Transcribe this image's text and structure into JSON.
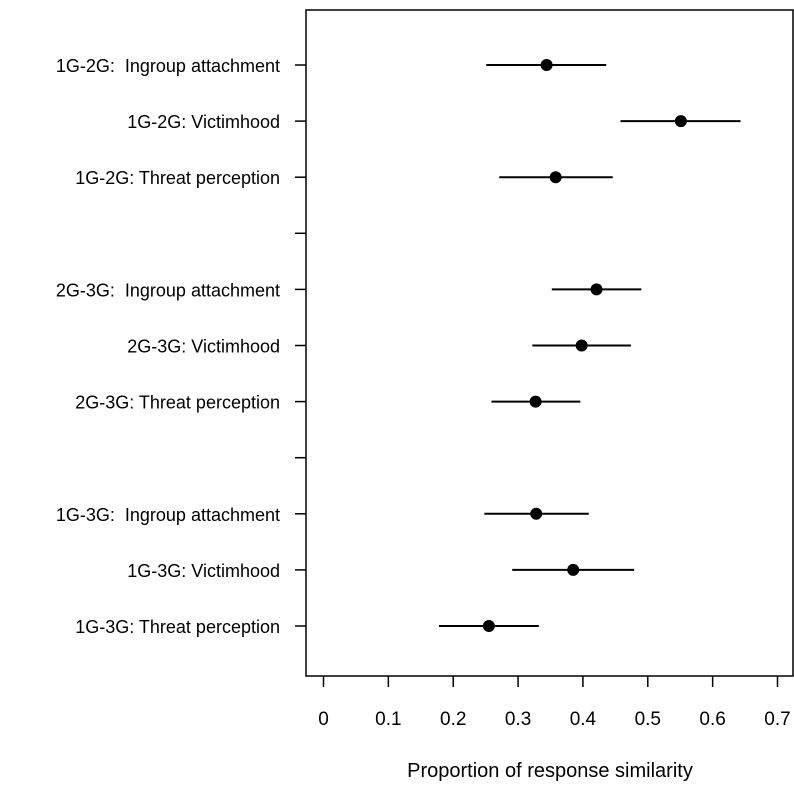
{
  "chart_data": {
    "type": "scatter",
    "subtype": "dot-with-error-bars",
    "orientation": "horizontal",
    "xlabel": "Proportion of response similarity",
    "xlim": [
      -0.03,
      0.73
    ],
    "xticks": [
      0,
      0.1,
      0.2,
      0.3,
      0.4,
      0.5,
      0.6,
      0.7
    ],
    "xtick_labels": [
      "0",
      "0.1",
      "0.2",
      "0.3",
      "0.4",
      "0.5",
      "0.6",
      "0.7"
    ],
    "grid": false,
    "legend": "none",
    "colors": {
      "point": "#000000",
      "line": "#000000",
      "axis": "#000000"
    },
    "items": [
      {
        "label": "1G-2G:  Ingroup attachment",
        "estimate": 0.344,
        "lower": 0.251,
        "upper": 0.436
      },
      {
        "label": "1G-2G: Victimhood",
        "estimate": 0.551,
        "lower": 0.458,
        "upper": 0.643
      },
      {
        "label": "1G-2G: Threat perception",
        "estimate": 0.358,
        "lower": 0.271,
        "upper": 0.446
      },
      {
        "label": "",
        "separator": true
      },
      {
        "label": "2G-3G:  Ingroup attachment",
        "estimate": 0.421,
        "lower": 0.352,
        "upper": 0.49
      },
      {
        "label": "2G-3G: Victimhood",
        "estimate": 0.398,
        "lower": 0.322,
        "upper": 0.474
      },
      {
        "label": "2G-3G: Threat perception",
        "estimate": 0.327,
        "lower": 0.259,
        "upper": 0.396
      },
      {
        "label": "",
        "separator": true
      },
      {
        "label": "1G-3G:  Ingroup attachment",
        "estimate": 0.328,
        "lower": 0.248,
        "upper": 0.409
      },
      {
        "label": "1G-3G: Victimhood",
        "estimate": 0.385,
        "lower": 0.291,
        "upper": 0.479
      },
      {
        "label": "1G-3G: Threat perception",
        "estimate": 0.255,
        "lower": 0.178,
        "upper": 0.332
      }
    ]
  }
}
